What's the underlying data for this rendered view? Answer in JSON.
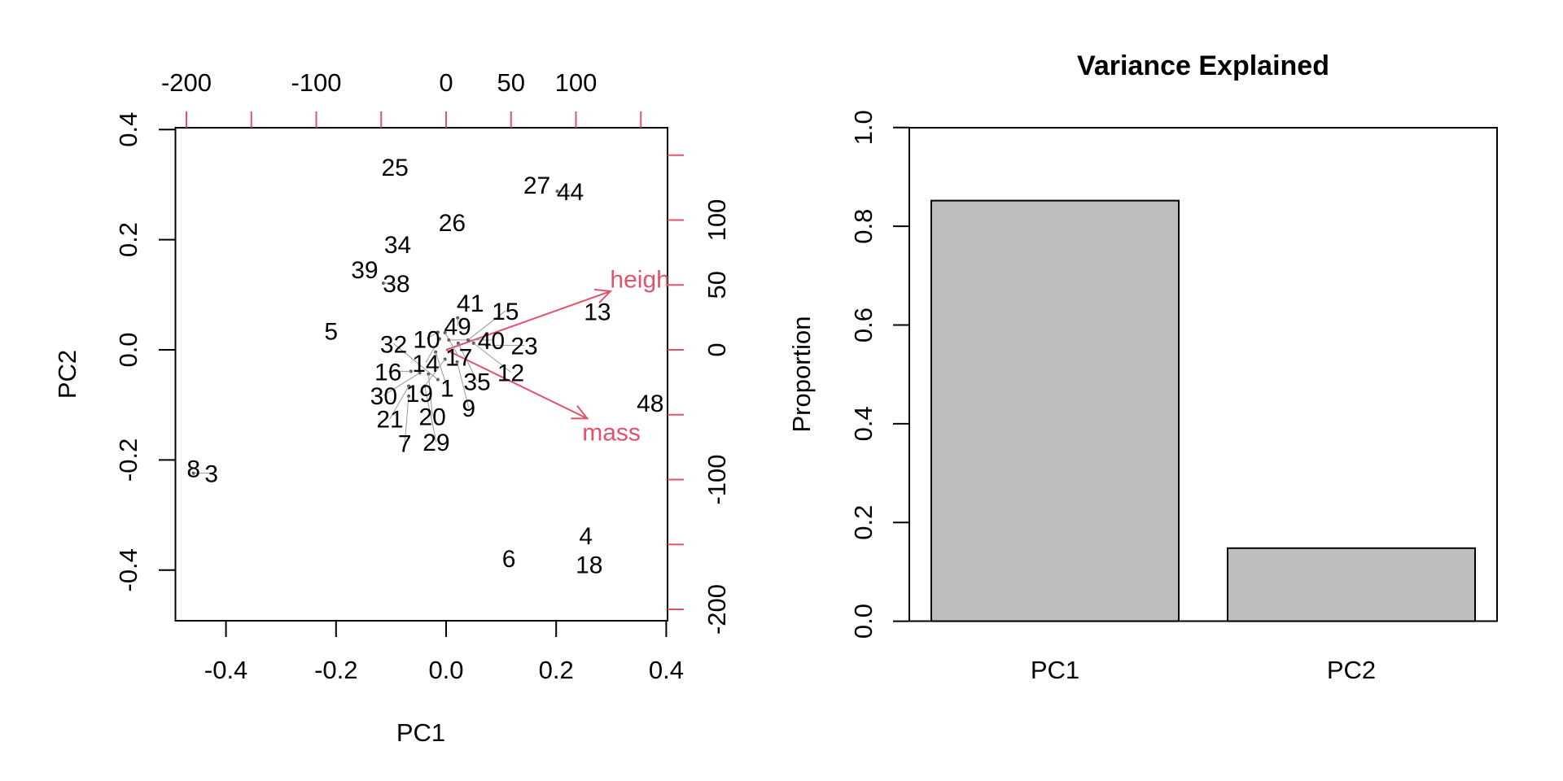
{
  "chart_data": [
    {
      "type": "scatter",
      "subtype": "biplot",
      "title": "",
      "xlabel": "PC1",
      "ylabel": "PC2",
      "xlim": [
        -0.48,
        0.4
      ],
      "ylim": [
        -0.49,
        0.4
      ],
      "x_ticks": [
        "-0.4",
        "-0.2",
        "0.0",
        "0.2",
        "0.4"
      ],
      "y_ticks": [
        "-0.4",
        "-0.2",
        "0.0",
        "0.2",
        "0.4"
      ],
      "secondary_axes": {
        "color": "#DF536B",
        "top_ticks": [
          -200,
          -150,
          -100,
          -50,
          0,
          50,
          100,
          150
        ],
        "top_tick_labels": [
          "-200",
          "-100",
          "0",
          "50",
          "100"
        ],
        "right_ticks": [
          -200,
          -150,
          -100,
          -50,
          0,
          50,
          100,
          150
        ],
        "right_tick_labels": [
          "-200",
          "-100",
          "0",
          "50",
          "100"
        ]
      },
      "points": [
        {
          "label": "25",
          "x": -0.093,
          "y": 0.332
        },
        {
          "label": "27",
          "x": 0.165,
          "y": 0.3
        },
        {
          "label": "44",
          "x": 0.202,
          "y": 0.288
        },
        {
          "label": "26",
          "x": 0.011,
          "y": 0.232
        },
        {
          "label": "34",
          "x": -0.088,
          "y": 0.192
        },
        {
          "label": "39",
          "x": -0.148,
          "y": 0.146
        },
        {
          "label": "38",
          "x": -0.114,
          "y": 0.121
        },
        {
          "label": "5",
          "x": -0.209,
          "y": 0.035
        },
        {
          "label": "41",
          "x": 0.044,
          "y": 0.086
        },
        {
          "label": "49",
          "x": 0.021,
          "y": 0.058
        },
        {
          "label": "13",
          "x": 0.275,
          "y": 0.07
        },
        {
          "label": "10",
          "x": -0.015,
          "y": 0.032
        },
        {
          "label": "17",
          "x": -0.002,
          "y": 0.031
        },
        {
          "label": "14",
          "x": -0.012,
          "y": 0.02
        },
        {
          "label": "40",
          "x": 0.005,
          "y": 0.018
        },
        {
          "label": "35",
          "x": 0.022,
          "y": 0.012
        },
        {
          "label": "15",
          "x": 0.04,
          "y": 0.018
        },
        {
          "label": "12",
          "x": 0.05,
          "y": 0.012
        },
        {
          "label": "23",
          "x": 0.074,
          "y": 0.008
        },
        {
          "label": "1",
          "x": -0.019,
          "y": -0.004
        },
        {
          "label": "19",
          "x": -0.002,
          "y": -0.017
        },
        {
          "label": "9",
          "x": 0.02,
          "y": -0.022
        },
        {
          "label": "16",
          "x": -0.064,
          "y": -0.039
        },
        {
          "label": "30",
          "x": -0.048,
          "y": -0.042
        },
        {
          "label": "20",
          "x": -0.032,
          "y": -0.044
        },
        {
          "label": "32",
          "x": -0.015,
          "y": -0.054
        },
        {
          "label": "21",
          "x": -0.068,
          "y": -0.066
        },
        {
          "label": "29",
          "x": -0.039,
          "y": -0.066
        },
        {
          "label": "7",
          "x": -0.068,
          "y": -0.084
        },
        {
          "label": "48",
          "x": 0.371,
          "y": -0.096
        },
        {
          "label": "8",
          "x": -0.459,
          "y": -0.215
        },
        {
          "label": "3",
          "x": -0.459,
          "y": -0.224
        },
        {
          "label": "6",
          "x": 0.114,
          "y": -0.378
        },
        {
          "label": "4",
          "x": 0.254,
          "y": -0.337
        },
        {
          "label": "18",
          "x": 0.26,
          "y": -0.389
        }
      ],
      "loadings": [
        {
          "label": "height",
          "visible_label": "heigl",
          "x": 126.6,
          "y": 45.1
        },
        {
          "label": "mass",
          "visible_label": "mass",
          "x": 108.7,
          "y": -52.9
        }
      ],
      "loading_color": "#DF536B"
    },
    {
      "type": "bar",
      "title": "Variance Explained",
      "xlabel": "",
      "ylabel": "Proportion",
      "categories": [
        "PC1",
        "PC2"
      ],
      "values": [
        0.852,
        0.148
      ],
      "ylim": [
        0,
        1
      ],
      "y_ticks": [
        "0.0",
        "0.2",
        "0.4",
        "0.6",
        "0.8",
        "1.0"
      ],
      "bar_color": "#BEBEBE"
    }
  ]
}
